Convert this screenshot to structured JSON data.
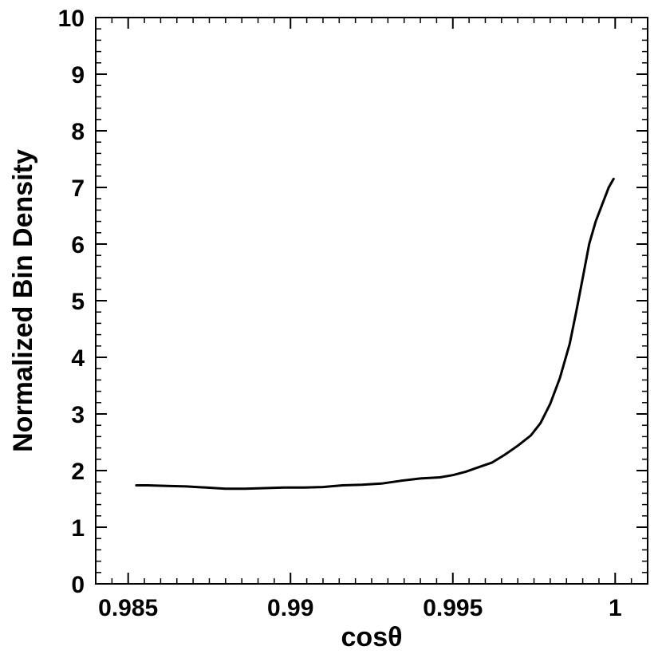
{
  "chart_data": {
    "type": "line",
    "title": "",
    "xlabel": "cosθ",
    "ylabel": "Normalized Bin Density",
    "xlim": [
      0.984,
      1.001
    ],
    "ylim": [
      0,
      10
    ],
    "grid": false,
    "x_ticks": [
      {
        "value": 0.985,
        "label": "0.985"
      },
      {
        "value": 0.99,
        "label": "0.99"
      },
      {
        "value": 0.995,
        "label": "0.995"
      },
      {
        "value": 1.0,
        "label": "1"
      }
    ],
    "y_ticks": [
      {
        "value": 0,
        "label": "0"
      },
      {
        "value": 1,
        "label": "1"
      },
      {
        "value": 2,
        "label": "2"
      },
      {
        "value": 3,
        "label": "3"
      },
      {
        "value": 4,
        "label": "4"
      },
      {
        "value": 5,
        "label": "5"
      },
      {
        "value": 6,
        "label": "6"
      },
      {
        "value": 7,
        "label": "7"
      },
      {
        "value": 8,
        "label": "8"
      },
      {
        "value": 9,
        "label": "9"
      },
      {
        "value": 10,
        "label": "10"
      }
    ],
    "x_minor_step": 0.0005,
    "y_minor_step": 0.2,
    "series": [
      {
        "color": "#000000",
        "x": [
          0.98525,
          0.9856,
          0.9862,
          0.9868,
          0.9874,
          0.988,
          0.9886,
          0.9892,
          0.9898,
          0.9904,
          0.991,
          0.9916,
          0.9922,
          0.9928,
          0.9934,
          0.994,
          0.9946,
          0.995,
          0.9954,
          0.9958,
          0.9962,
          0.9966,
          0.997,
          0.9974,
          0.9977,
          0.998,
          0.9983,
          0.9986,
          0.9988,
          0.999,
          0.9992,
          0.9994,
          0.9996,
          0.9998,
          0.99995
        ],
        "y": [
          1.74,
          1.74,
          1.73,
          1.72,
          1.7,
          1.68,
          1.68,
          1.69,
          1.7,
          1.7,
          1.71,
          1.74,
          1.75,
          1.77,
          1.82,
          1.86,
          1.88,
          1.92,
          1.98,
          2.06,
          2.14,
          2.28,
          2.44,
          2.62,
          2.84,
          3.18,
          3.64,
          4.24,
          4.8,
          5.4,
          6.0,
          6.4,
          6.7,
          7.0,
          7.15
        ]
      }
    ]
  }
}
